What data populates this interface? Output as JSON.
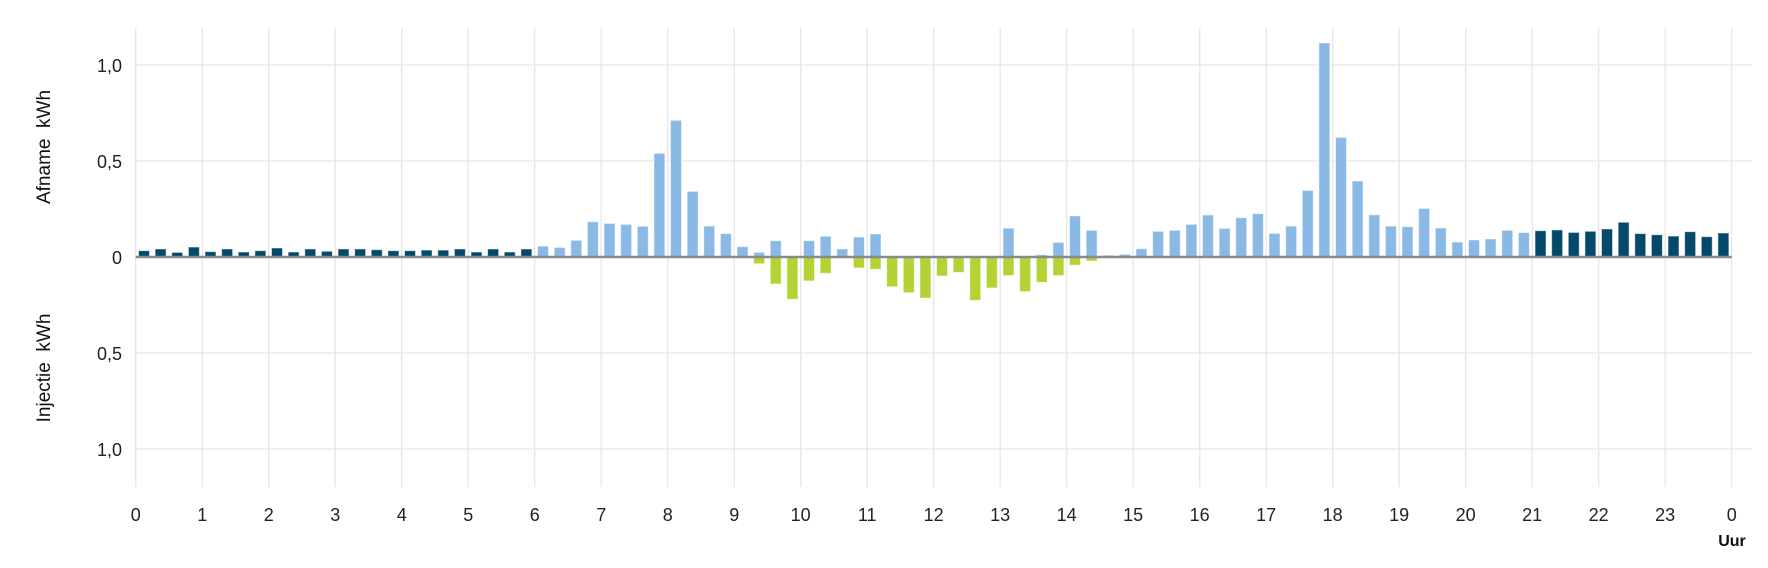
{
  "chart_data": {
    "type": "bar",
    "title": "",
    "xlabel": "Uur",
    "ylabel_top": "Afname  kWh",
    "ylabel_bottom": "Injectie  kWh",
    "x_ticks": [
      "0",
      "1",
      "2",
      "3",
      "4",
      "5",
      "6",
      "7",
      "8",
      "9",
      "10",
      "11",
      "12",
      "13",
      "14",
      "15",
      "16",
      "17",
      "18",
      "19",
      "20",
      "21",
      "22",
      "23",
      "0"
    ],
    "y_ticks": [
      {
        "value": 1.0,
        "label": "1,0"
      },
      {
        "value": 0.5,
        "label": "0,5"
      },
      {
        "value": 0,
        "label": "0"
      },
      {
        "value": -0.5,
        "label": "0,5"
      },
      {
        "value": -1.0,
        "label": "1,0"
      }
    ],
    "ylim": [
      -1.0,
      1.0
    ],
    "xlim_hours": [
      0,
      24
    ],
    "interval_minutes": 15,
    "grid": true,
    "colors": {
      "afname_offpeak": "#03496a",
      "afname_peak": "#89b9e4",
      "injectie": "#b3d334",
      "zero_line": "#8a8a8a",
      "grid": "#e6e6e6"
    },
    "offpeak_hours": [
      [
        0,
        6
      ],
      [
        21,
        24
      ]
    ],
    "series": [
      {
        "name": "Afname",
        "values": [
          0.033,
          0.042,
          0.024,
          0.052,
          0.028,
          0.042,
          0.026,
          0.033,
          0.047,
          0.026,
          0.042,
          0.03,
          0.042,
          0.042,
          0.038,
          0.033,
          0.033,
          0.036,
          0.036,
          0.042,
          0.026,
          0.042,
          0.026,
          0.042,
          0.057,
          0.05,
          0.087,
          0.184,
          0.175,
          0.17,
          0.16,
          0.54,
          0.712,
          0.342,
          0.161,
          0.122,
          0.054,
          0.024,
          0.085,
          0.0,
          0.085,
          0.108,
          0.042,
          0.104,
          0.12,
          0.0,
          0.0,
          0.0,
          0.0,
          0.0,
          0.0,
          0.0,
          0.15,
          0.0,
          0.012,
          0.076,
          0.214,
          0.139,
          0.009,
          0.014,
          0.043,
          0.134,
          0.139,
          0.17,
          0.219,
          0.149,
          0.205,
          0.226,
          0.123,
          0.161,
          0.347,
          1.115,
          0.623,
          0.396,
          0.22,
          0.161,
          0.158,
          0.253,
          0.151,
          0.078,
          0.089,
          0.094,
          0.139,
          0.127,
          0.137,
          0.141,
          0.128,
          0.134,
          0.146,
          0.181,
          0.122,
          0.116,
          0.109,
          0.132,
          0.106,
          0.125
        ]
      },
      {
        "name": "Injectie",
        "values": [
          0,
          0,
          0,
          0,
          0,
          0,
          0,
          0,
          0,
          0,
          0,
          0,
          0,
          0,
          0,
          0,
          0,
          0,
          0,
          0,
          0,
          0,
          0,
          0,
          0,
          0,
          0,
          0,
          0,
          0,
          0,
          0,
          0,
          0,
          0,
          0,
          0,
          0.035,
          0.141,
          0.22,
          0.125,
          0.085,
          0,
          0.057,
          0.064,
          0.155,
          0.186,
          0.214,
          0.099,
          0.08,
          0.226,
          0.161,
          0.097,
          0.18,
          0.132,
          0.097,
          0.043,
          0.021,
          0,
          0,
          0,
          0,
          0,
          0,
          0,
          0,
          0,
          0,
          0,
          0,
          0,
          0,
          0,
          0,
          0,
          0,
          0,
          0,
          0,
          0,
          0,
          0,
          0,
          0,
          0,
          0,
          0,
          0,
          0,
          0,
          0,
          0,
          0,
          0,
          0,
          0
        ]
      }
    ]
  }
}
